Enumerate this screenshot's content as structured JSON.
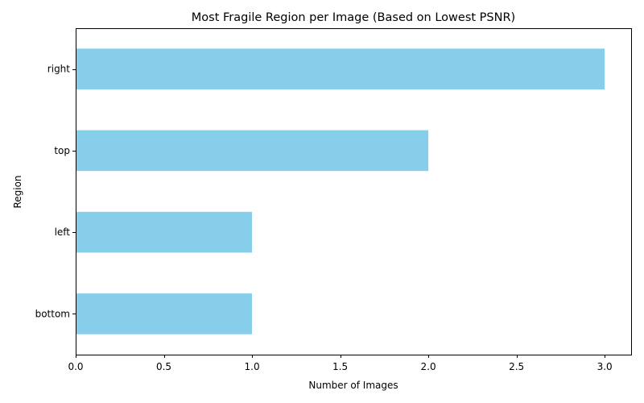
{
  "chart_data": {
    "type": "bar",
    "orientation": "horizontal",
    "title": "Most Fragile Region per Image (Based on Lowest PSNR)",
    "xlabel": "Number of Images",
    "ylabel": "Region",
    "categories": [
      "bottom",
      "left",
      "top",
      "right"
    ],
    "values": [
      1,
      1,
      2,
      3
    ],
    "xlim": [
      0,
      3.15
    ],
    "xticks": [
      "0.0",
      "0.5",
      "1.0",
      "1.5",
      "2.0",
      "2.5",
      "3.0"
    ],
    "bar_color": "#87ceeb",
    "grid": false,
    "legend": "none"
  }
}
